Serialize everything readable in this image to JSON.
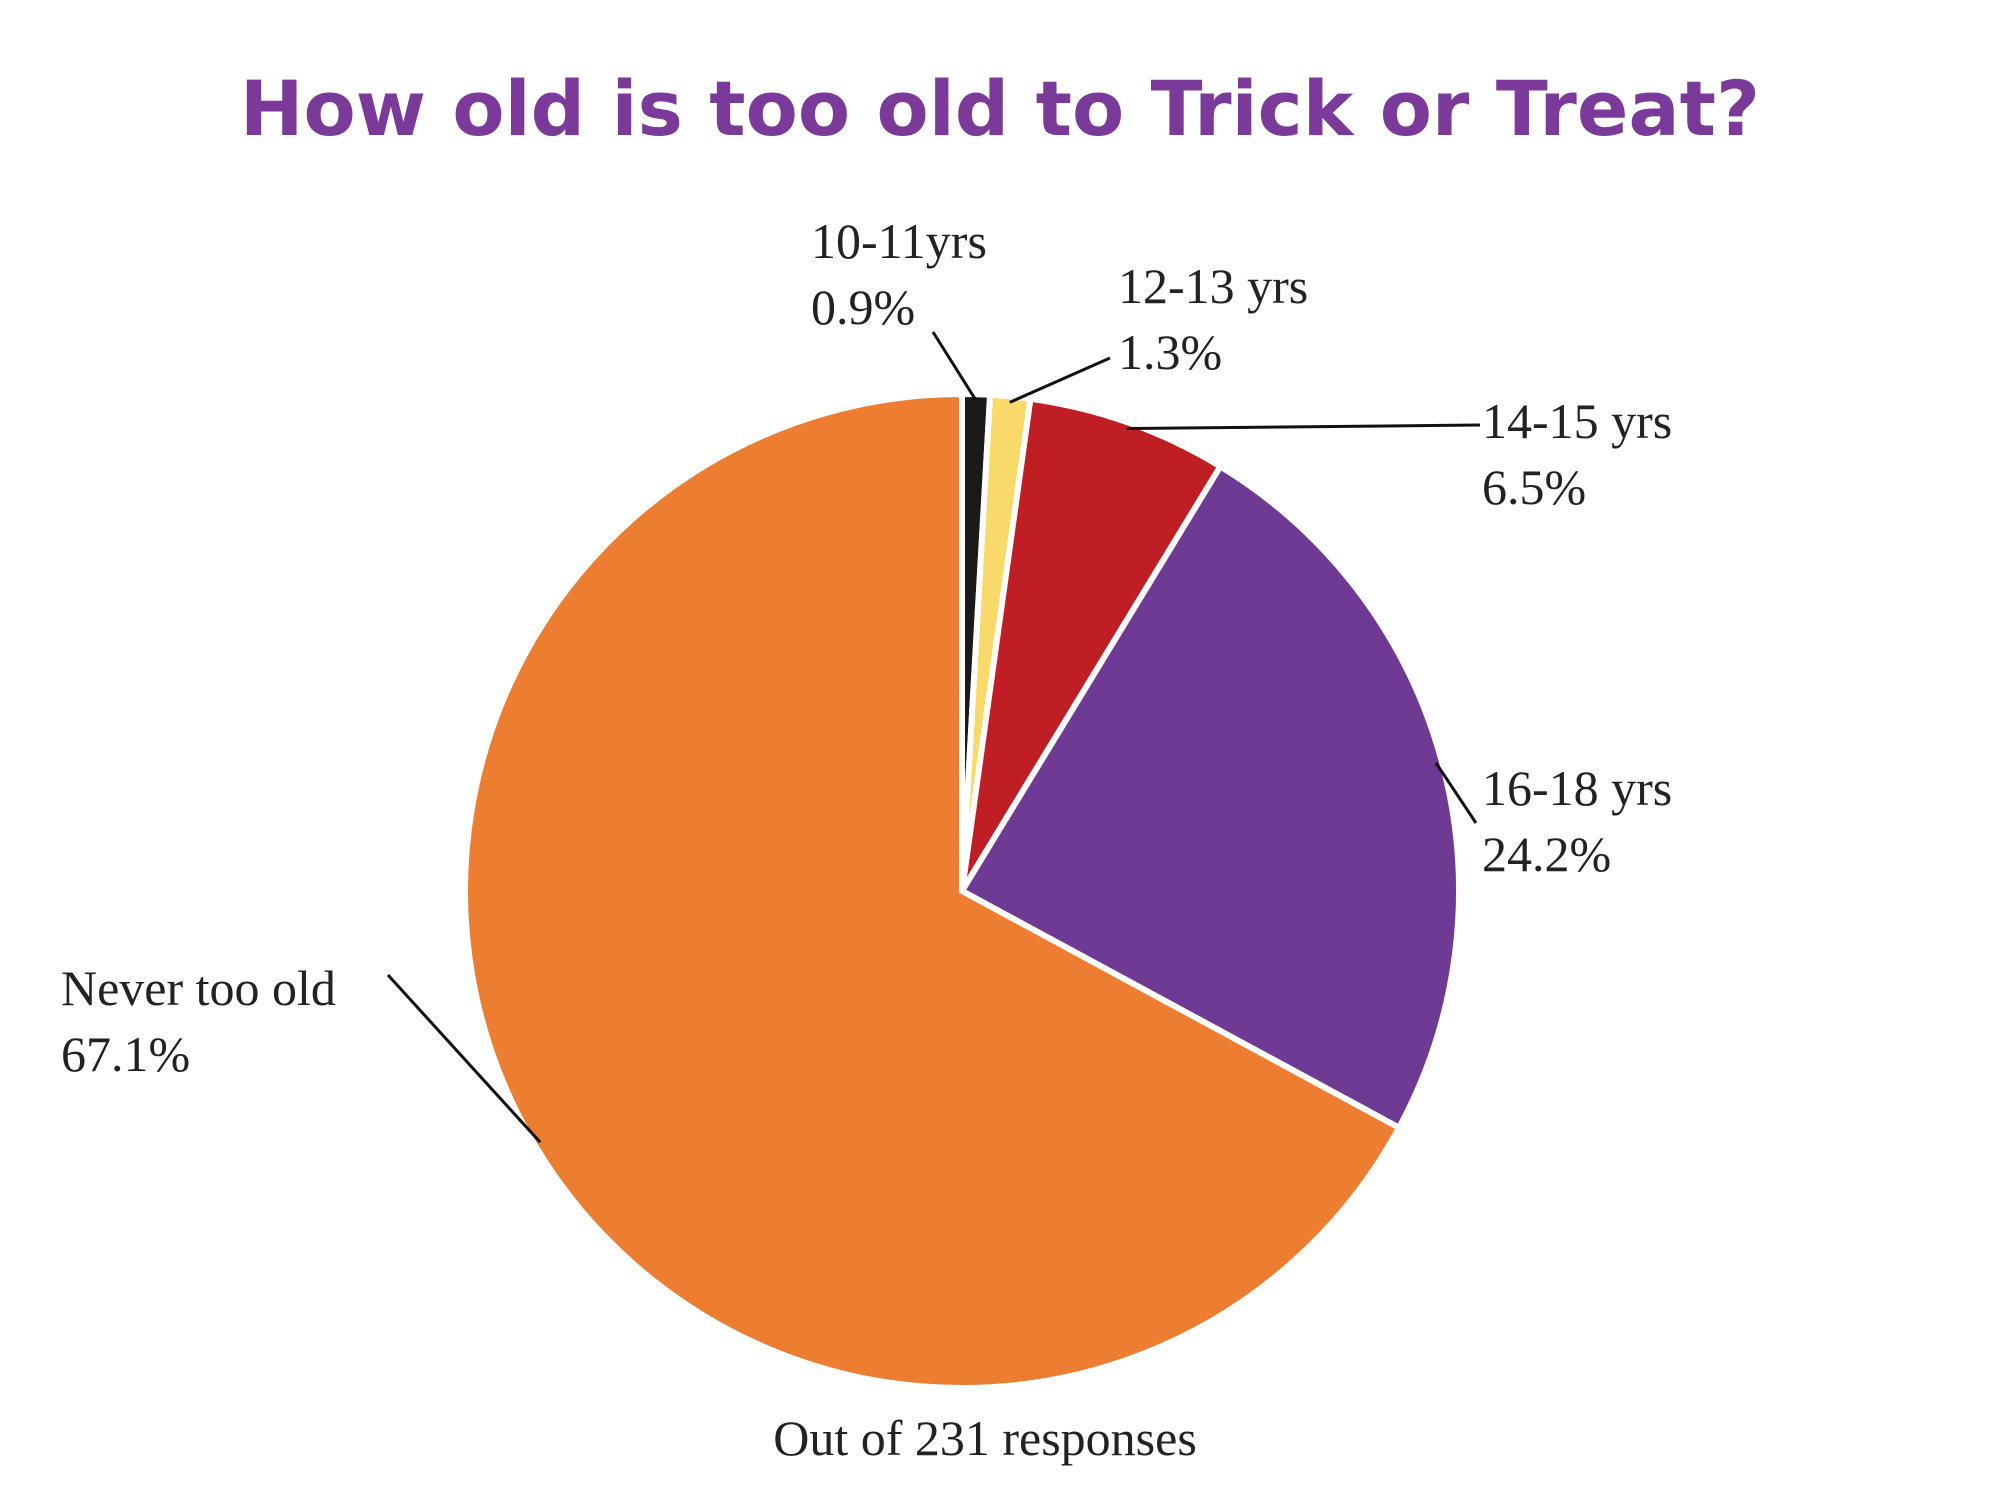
{
  "chart_data": {
    "type": "pie",
    "title": "How old is too old to Trick or Treat?",
    "subtitle": "Out of 231 responses",
    "categories": [
      "10-11yrs",
      "12-13 yrs",
      "14-15 yrs",
      "16-18 yrs",
      "Never too old"
    ],
    "values": [
      0.9,
      1.3,
      6.5,
      24.2,
      67.1
    ],
    "value_labels": [
      "0.9%",
      "1.3%",
      "6.5%",
      "24.2%",
      "67.1%"
    ],
    "colors": [
      "#1a1a1a",
      "#f9d96a",
      "#be1e24",
      "#6f3a94",
      "#ed7d31"
    ]
  }
}
